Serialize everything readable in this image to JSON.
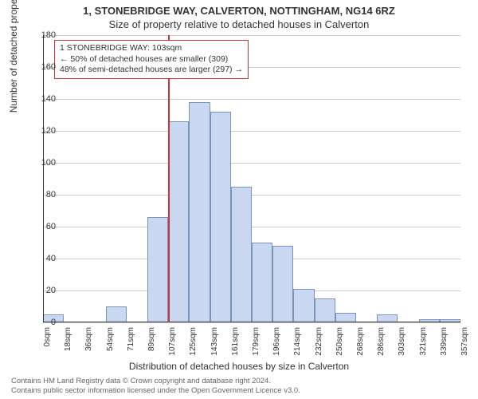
{
  "titles": {
    "main": "1, STONEBRIDGE WAY, CALVERTON, NOTTINGHAM, NG14 6RZ",
    "sub": "Size of property relative to detached houses in Calverton"
  },
  "y_axis": {
    "title": "Number of detached properties",
    "ticks": [
      0,
      20,
      40,
      60,
      80,
      100,
      120,
      140,
      160,
      180
    ],
    "max": 180
  },
  "x_axis": {
    "title": "Distribution of detached houses by size in Calverton",
    "tick_labels": [
      "0sqm",
      "18sqm",
      "36sqm",
      "54sqm",
      "71sqm",
      "89sqm",
      "107sqm",
      "125sqm",
      "143sqm",
      "161sqm",
      "179sqm",
      "196sqm",
      "214sqm",
      "232sqm",
      "250sqm",
      "268sqm",
      "286sqm",
      "303sqm",
      "321sqm",
      "339sqm",
      "357sqm"
    ]
  },
  "bars": {
    "values": [
      5,
      0,
      0,
      10,
      0,
      66,
      126,
      138,
      132,
      85,
      50,
      48,
      21,
      15,
      6,
      0,
      5,
      0,
      2,
      2
    ],
    "fill": "#c9d8f0",
    "stroke": "#7a94bd"
  },
  "marker": {
    "x_index": 6,
    "color": "#cc3333"
  },
  "info_box": {
    "lines": [
      "1 STONEBRIDGE WAY: 103sqm",
      "← 50% of detached houses are smaller (309)",
      "48% of semi-detached houses are larger (297) →"
    ],
    "border_color": "#cc3333"
  },
  "footer": {
    "line1": "Contains HM Land Registry data © Crown copyright and database right 2024.",
    "line2": "Contains public sector information licensed under the Open Government Licence v3.0."
  },
  "style": {
    "grid_color": "#cccccc",
    "axis_color": "#333333",
    "background": "#ffffff"
  }
}
